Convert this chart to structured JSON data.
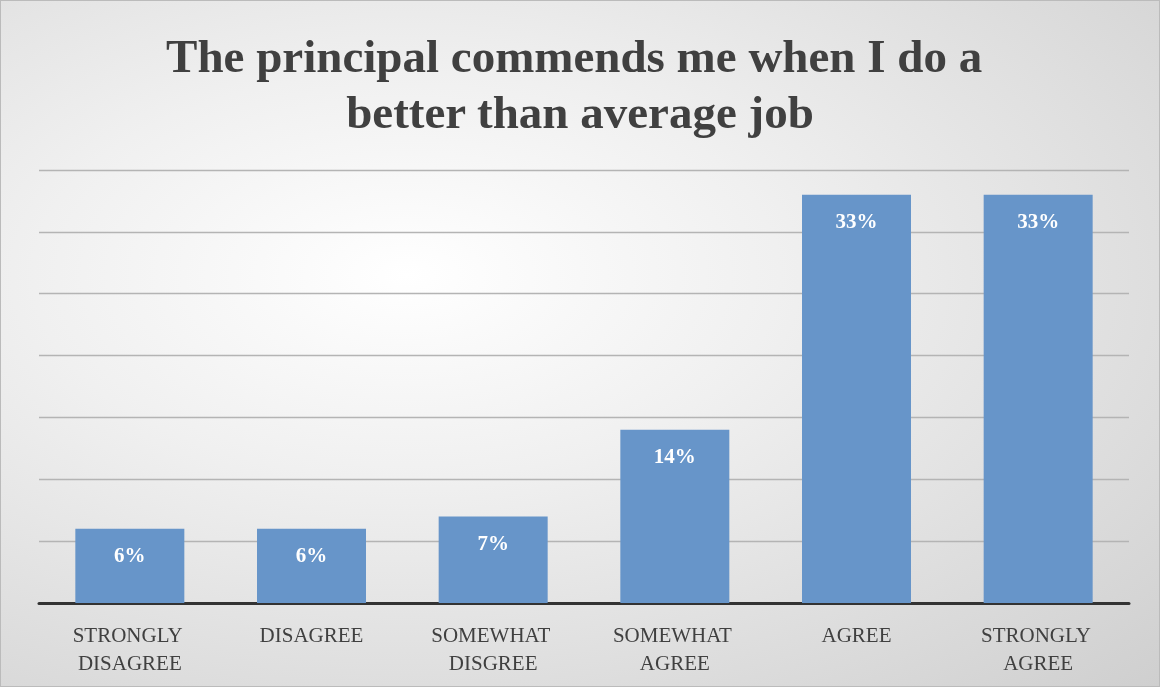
{
  "chart_data": {
    "type": "bar",
    "title": "The principal commends me when I do a better than average job",
    "categories": [
      "STRONGLY DISAGREE",
      "DISAGREE",
      "SOMEWHAT DISGREE",
      "SOMEWHAT AGREE",
      "AGREE",
      "STRONGLY AGREE"
    ],
    "values": [
      6,
      6,
      7,
      14,
      33,
      33
    ],
    "color": "#6795c9",
    "ylim": [
      0,
      35
    ],
    "yticks": [
      {
        "value": 0,
        "label": null
      },
      {
        "value": 5,
        "label": null
      },
      {
        "value": 10,
        "label": null
      },
      {
        "value": 15,
        "label": null
      },
      {
        "value": 20,
        "label": null
      },
      {
        "value": 25,
        "label": null
      },
      {
        "value": 30,
        "label": null
      },
      {
        "value": 35,
        "label": null
      }
    ],
    "value_labels": [
      "6%",
      "6%",
      "7%",
      "14%",
      "33%",
      "33%"
    ],
    "grid": "y",
    "tick_labels": "x"
  }
}
